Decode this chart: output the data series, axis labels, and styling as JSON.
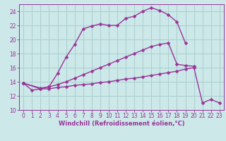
{
  "xlabel": "Windchill (Refroidissement éolien,°C)",
  "bg_color": "#cce8e8",
  "grid_color": "#aacfcf",
  "line_color": "#993399",
  "xlim": [
    -0.5,
    23.5
  ],
  "ylim": [
    10,
    25
  ],
  "xticks": [
    0,
    1,
    2,
    3,
    4,
    5,
    6,
    7,
    8,
    9,
    10,
    11,
    12,
    13,
    14,
    15,
    16,
    17,
    18,
    19,
    20,
    21,
    22,
    23
  ],
  "yticks": [
    10,
    12,
    14,
    16,
    18,
    20,
    22,
    24
  ],
  "line1_x": [
    0,
    1,
    2,
    3,
    4,
    5,
    6,
    7,
    8,
    9,
    10,
    11,
    12,
    13,
    14,
    15,
    16,
    17,
    18,
    19
  ],
  "line1_y": [
    13.8,
    12.8,
    13.0,
    13.3,
    15.2,
    17.5,
    19.3,
    21.5,
    21.9,
    22.2,
    22.0,
    22.0,
    23.0,
    23.3,
    24.0,
    24.5,
    24.1,
    23.5,
    22.5,
    19.5
  ],
  "line2_x": [
    0,
    2,
    3,
    4,
    5,
    6,
    7,
    8,
    9,
    10,
    11,
    12,
    13,
    14,
    15,
    16,
    17,
    18,
    19,
    20
  ],
  "line2_y": [
    13.8,
    13.1,
    13.3,
    13.6,
    14.0,
    14.5,
    15.0,
    15.5,
    16.0,
    16.5,
    17.0,
    17.5,
    18.0,
    18.5,
    19.0,
    19.3,
    19.5,
    16.5,
    16.3,
    16.2
  ],
  "line3_x": [
    0,
    2,
    3,
    4,
    5,
    6,
    7,
    8,
    9,
    10,
    11,
    12,
    13,
    14,
    15,
    16,
    17,
    18,
    19,
    20,
    21,
    22,
    23
  ],
  "line3_y": [
    13.8,
    13.0,
    13.0,
    13.2,
    13.3,
    13.5,
    13.6,
    13.7,
    13.9,
    14.0,
    14.2,
    14.4,
    14.5,
    14.7,
    14.9,
    15.1,
    15.3,
    15.5,
    15.8,
    16.0,
    11.0,
    11.5,
    11.0
  ],
  "marker_size": 2.5,
  "linewidth": 1.0,
  "tick_fontsize": 5.5,
  "label_fontsize": 6.0
}
